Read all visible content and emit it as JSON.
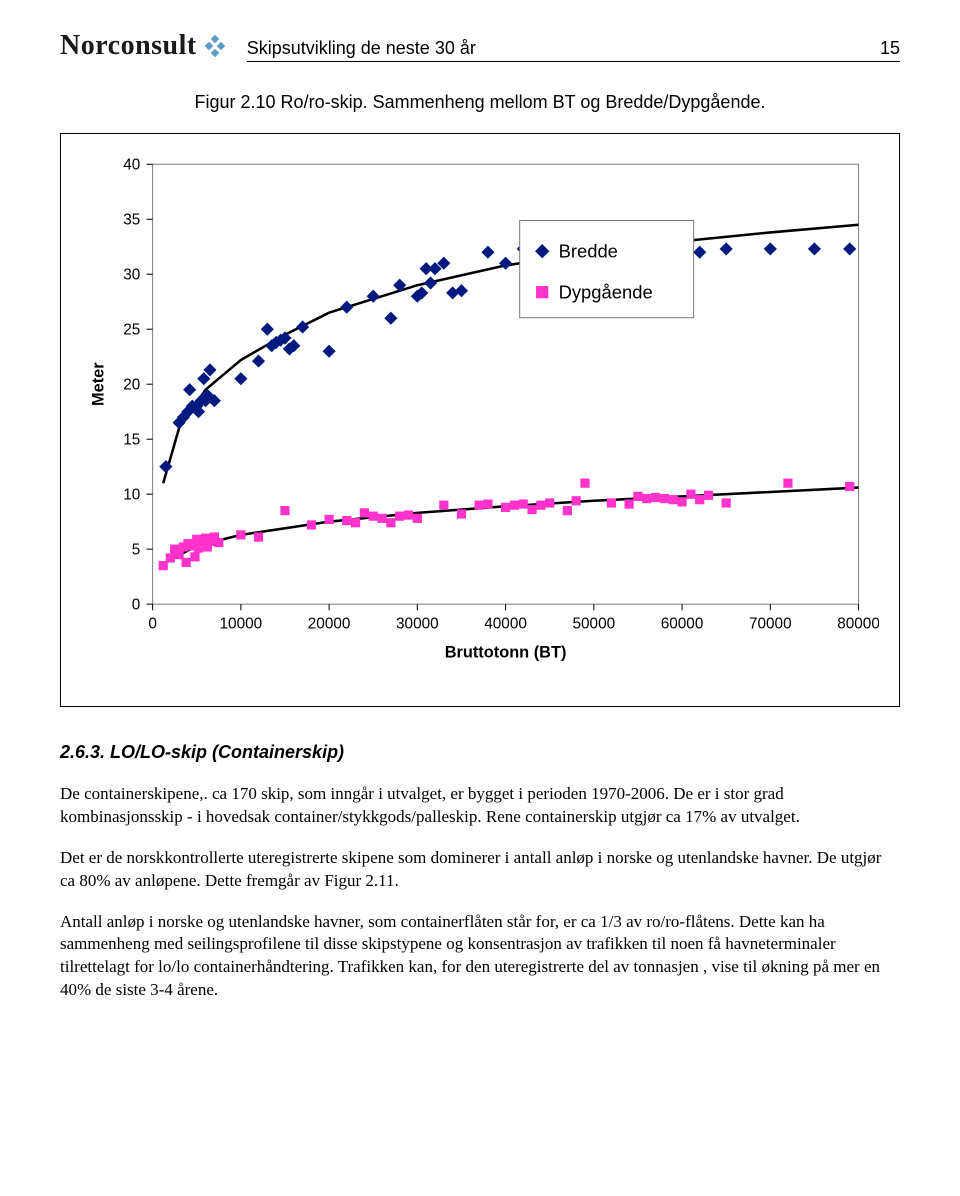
{
  "header": {
    "logo_text": "Norconsult",
    "running_title": "Skipsutvikling de neste 30 år",
    "page_number": "15"
  },
  "caption": "Figur 2.10  Ro/ro-skip. Sammenheng mellom BT og Bredde/Dypgående.",
  "section_heading": "2.6.3.  LO/LO-skip (Containerskip)",
  "paragraphs": [
    "De containerskipene,. ca 170 skip, som inngår i utvalget, er bygget i perioden 1970-2006. De er i stor grad kombinasjonsskip - i hovedsak container/stykkgods/palleskip. Rene containerskip utgjør ca 17% av utvalget.",
    "Det er de norskkontrollerte uteregistrerte skipene som dominerer i antall anløp i norske og utenlandske havner. De utgjør ca 80% av anløpene. Dette fremgår av Figur 2.11.",
    "Antall anløp i norske og utenlandske havner, som containerflåten står for, er ca 1/3 av ro/ro-flåtens. Dette kan ha sammenheng med seilingsprofilene til disse skipstypene og konsentrasjon av trafikken til noen få havneterminaler tilrettelagt for lo/lo containerhåndtering. Trafikken kan, for den uteregistrerte del av tonnasjen , vise til økning på mer en 40% de siste 3-4 årene."
  ],
  "chart": {
    "type": "scatter-with-trend",
    "xlabel": "Bruttotonn (BT)",
    "ylabel": "Meter",
    "xlim": [
      0,
      80000
    ],
    "ylim": [
      0,
      40
    ],
    "xtick_step": 10000,
    "ytick_step": 5,
    "background_color": "#ffffff",
    "plot_border_color": "#808080",
    "tick_label_fontsize": 15,
    "axis_label_fontsize": 16,
    "axis_label_fontweight": "bold",
    "legend": {
      "items": [
        "Bredde",
        "Dypgående"
      ],
      "item_font_size": 18,
      "box_border": "#7a7a7a",
      "position": "inside-upper-middle-right"
    },
    "series": [
      {
        "name": "Bredde",
        "marker": "diamond",
        "marker_size": 9,
        "color": "#001a80",
        "trend_color": "#000000",
        "trend_width": 2.5,
        "points": [
          [
            1500,
            12.5
          ],
          [
            3000,
            16.5
          ],
          [
            3500,
            17
          ],
          [
            4000,
            17.5
          ],
          [
            4200,
            19.5
          ],
          [
            4500,
            18
          ],
          [
            5000,
            18
          ],
          [
            5200,
            17.5
          ],
          [
            5500,
            18.5
          ],
          [
            5800,
            20.5
          ],
          [
            6000,
            18.5
          ],
          [
            6200,
            19
          ],
          [
            6500,
            21.3
          ],
          [
            7000,
            18.5
          ],
          [
            10000,
            20.5
          ],
          [
            12000,
            22.1
          ],
          [
            13000,
            25
          ],
          [
            13500,
            23.5
          ],
          [
            14000,
            23.8
          ],
          [
            14500,
            24
          ],
          [
            15000,
            24.2
          ],
          [
            15500,
            23.2
          ],
          [
            16000,
            23.5
          ],
          [
            17000,
            25.2
          ],
          [
            20000,
            23
          ],
          [
            22000,
            27
          ],
          [
            25000,
            28
          ],
          [
            27000,
            26
          ],
          [
            28000,
            29
          ],
          [
            30000,
            28
          ],
          [
            30500,
            28.3
          ],
          [
            31000,
            30.5
          ],
          [
            31500,
            29.2
          ],
          [
            32000,
            30.5
          ],
          [
            33000,
            31
          ],
          [
            34000,
            28.3
          ],
          [
            35000,
            28.5
          ],
          [
            38000,
            32
          ],
          [
            40000,
            31
          ],
          [
            42000,
            32.3
          ],
          [
            43000,
            32.3
          ],
          [
            45000,
            31
          ],
          [
            46000,
            32.3
          ],
          [
            47000,
            32.3
          ],
          [
            49000,
            32.3
          ],
          [
            50000,
            32
          ],
          [
            51000,
            32.3
          ],
          [
            52000,
            32.3
          ],
          [
            55000,
            32.3
          ],
          [
            56000,
            32.3
          ],
          [
            57000,
            32.3
          ],
          [
            60000,
            32.3
          ],
          [
            62000,
            32
          ],
          [
            65000,
            32.3
          ],
          [
            70000,
            32.3
          ],
          [
            75000,
            32.3
          ],
          [
            79000,
            32.3
          ]
        ],
        "trend": [
          [
            1200,
            11
          ],
          [
            3000,
            16
          ],
          [
            6000,
            19.5
          ],
          [
            10000,
            22.2
          ],
          [
            15000,
            24.5
          ],
          [
            20000,
            26.5
          ],
          [
            30000,
            29
          ],
          [
            40000,
            30.8
          ],
          [
            50000,
            32
          ],
          [
            60000,
            33
          ],
          [
            70000,
            33.8
          ],
          [
            80000,
            34.5
          ]
        ]
      },
      {
        "name": "Dypgående",
        "marker": "square",
        "marker_size": 9,
        "color": "#ff33cc",
        "trend_color": "#000000",
        "trend_width": 2.5,
        "points": [
          [
            1200,
            3.5
          ],
          [
            2000,
            4.2
          ],
          [
            2500,
            5
          ],
          [
            3000,
            4.5
          ],
          [
            3500,
            5.2
          ],
          [
            3800,
            3.8
          ],
          [
            4000,
            5.5
          ],
          [
            4200,
            5.3
          ],
          [
            4500,
            5.4
          ],
          [
            4800,
            4.3
          ],
          [
            5000,
            5.9
          ],
          [
            5200,
            5.1
          ],
          [
            5500,
            5.5
          ],
          [
            5800,
            5.8
          ],
          [
            6000,
            6
          ],
          [
            6200,
            5.2
          ],
          [
            6500,
            5.7
          ],
          [
            7000,
            6.1
          ],
          [
            7500,
            5.6
          ],
          [
            10000,
            6.3
          ],
          [
            12000,
            6.1
          ],
          [
            15000,
            8.5
          ],
          [
            18000,
            7.2
          ],
          [
            20000,
            7.7
          ],
          [
            22000,
            7.6
          ],
          [
            23000,
            7.4
          ],
          [
            24000,
            8.3
          ],
          [
            25000,
            8
          ],
          [
            26000,
            7.8
          ],
          [
            27000,
            7.4
          ],
          [
            28000,
            8
          ],
          [
            29000,
            8.1
          ],
          [
            30000,
            7.8
          ],
          [
            33000,
            9
          ],
          [
            35000,
            8.2
          ],
          [
            37000,
            9
          ],
          [
            38000,
            9.1
          ],
          [
            40000,
            8.8
          ],
          [
            41000,
            9
          ],
          [
            42000,
            9.1
          ],
          [
            43000,
            8.6
          ],
          [
            44000,
            9
          ],
          [
            45000,
            9.2
          ],
          [
            47000,
            8.5
          ],
          [
            48000,
            9.4
          ],
          [
            49000,
            11
          ],
          [
            52000,
            9.2
          ],
          [
            54000,
            9.1
          ],
          [
            55000,
            9.8
          ],
          [
            56000,
            9.6
          ],
          [
            57000,
            9.7
          ],
          [
            58000,
            9.6
          ],
          [
            59000,
            9.5
          ],
          [
            60000,
            9.3
          ],
          [
            61000,
            10
          ],
          [
            62000,
            9.5
          ],
          [
            63000,
            9.9
          ],
          [
            65000,
            9.2
          ],
          [
            72000,
            11
          ],
          [
            79000,
            10.7
          ]
        ],
        "trend": [
          [
            1200,
            3.7
          ],
          [
            5000,
            5.3
          ],
          [
            10000,
            6.3
          ],
          [
            20000,
            7.5
          ],
          [
            30000,
            8.3
          ],
          [
            40000,
            8.9
          ],
          [
            50000,
            9.4
          ],
          [
            60000,
            9.8
          ],
          [
            70000,
            10.2
          ],
          [
            80000,
            10.6
          ]
        ]
      }
    ]
  },
  "logo": {
    "diamond_color": "#5a9bc4"
  }
}
